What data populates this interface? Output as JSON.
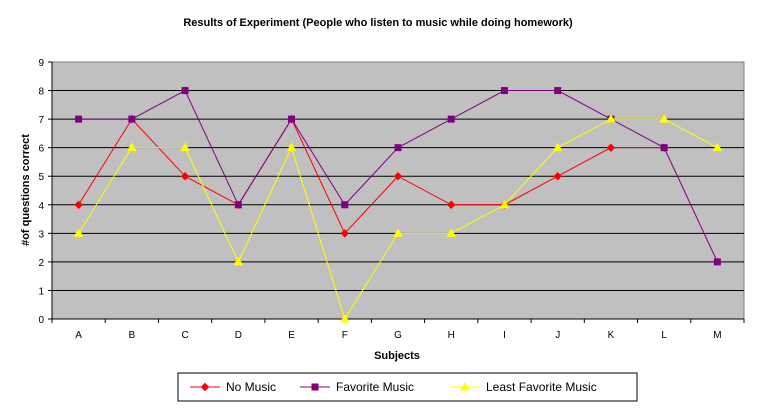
{
  "chart_data": {
    "type": "line",
    "title": "Results of Experiment (People who listen to music while doing homework)",
    "xlabel": "Subjects",
    "ylabel": "#of questions correct",
    "categories": [
      "A",
      "B",
      "C",
      "D",
      "E",
      "F",
      "G",
      "H",
      "I",
      "J",
      "K",
      "L",
      "M"
    ],
    "ylim": [
      0,
      9
    ],
    "yticks": [
      0,
      1,
      2,
      3,
      4,
      5,
      6,
      7,
      8,
      9
    ],
    "grid": true,
    "legend_position": "bottom",
    "plot_background": "#c0c0c0",
    "series": [
      {
        "name": "No Music",
        "color": "#ff0000",
        "marker": "diamond",
        "values": [
          4,
          7,
          5,
          4,
          7,
          3,
          5,
          4,
          4,
          5,
          6,
          6,
          null
        ]
      },
      {
        "name": "Favorite Music",
        "color": "#800080",
        "marker": "square",
        "values": [
          7,
          7,
          8,
          4,
          7,
          4,
          6,
          7,
          8,
          8,
          7,
          6,
          2
        ]
      },
      {
        "name": "Least Favorite Music",
        "color": "#ffff00",
        "marker": "triangle",
        "values": [
          3,
          6,
          6,
          2,
          6,
          0,
          3,
          3,
          4,
          6,
          7,
          7,
          6
        ]
      }
    ]
  }
}
